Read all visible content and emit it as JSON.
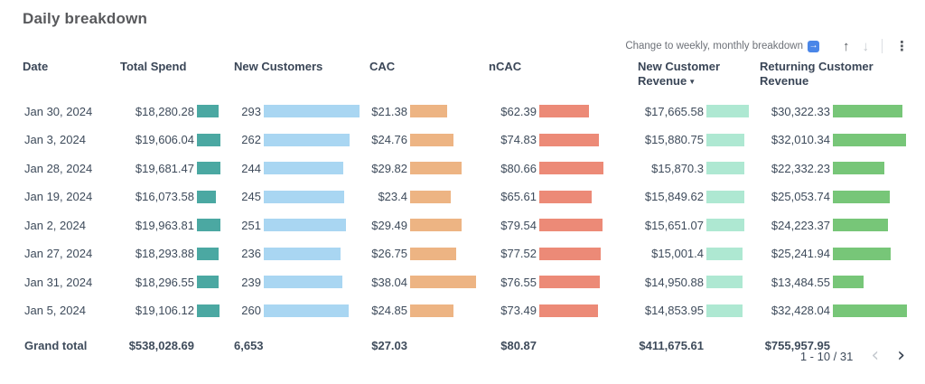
{
  "title": "Daily breakdown",
  "toolbar": {
    "hint": "Change to weekly, monthly breakdown",
    "arrow_icon": "→",
    "sort_up": "↑",
    "sort_down": "↓",
    "menu": "⋮"
  },
  "columns": {
    "date": "Date",
    "spend": "Total Spend",
    "customers": "New Customers",
    "cac": "CAC",
    "ncac": "nCAC",
    "ncr": "New Customer Revenue",
    "rcr": "Returning Customer Revenue",
    "sorted_column": "ncr",
    "sort_caret": "▼"
  },
  "colors": {
    "spend_bar": "#4ba8a2",
    "customers_bar": "#a9d6f2",
    "cac_bar": "#edb483",
    "ncac_bar": "#ec8a77",
    "ncr_bar": "#aee8d2",
    "rcr_bar": "#77c678"
  },
  "chart_data": {
    "type": "table",
    "title": "Daily breakdown",
    "categories": [
      "Jan 30, 2024",
      "Jan 3, 2024",
      "Jan 28, 2024",
      "Jan 19, 2024",
      "Jan 2, 2024",
      "Jan 27, 2024",
      "Jan 31, 2024",
      "Jan 5, 2024"
    ],
    "series": [
      {
        "name": "Total Spend",
        "values": [
          18280.28,
          19606.04,
          19681.47,
          16073.58,
          19963.81,
          18293.88,
          18296.55,
          19106.12
        ]
      },
      {
        "name": "New Customers",
        "values": [
          293,
          262,
          244,
          245,
          251,
          236,
          239,
          260
        ]
      },
      {
        "name": "CAC",
        "values": [
          21.38,
          24.76,
          29.82,
          23.4,
          29.49,
          26.75,
          38.04,
          24.85
        ]
      },
      {
        "name": "nCAC",
        "values": [
          62.39,
          74.83,
          80.66,
          65.61,
          79.54,
          77.52,
          76.55,
          73.49
        ]
      },
      {
        "name": "New Customer Revenue",
        "values": [
          17665.58,
          15880.75,
          15870.3,
          15849.62,
          15651.07,
          15001.4,
          14950.88,
          14853.95
        ]
      },
      {
        "name": "Returning Customer Revenue",
        "values": [
          30322.33,
          32010.34,
          22332.23,
          25053.74,
          24223.37,
          25241.94,
          13484.55,
          32428.04
        ]
      }
    ]
  },
  "rows": [
    {
      "date": "Jan 30, 2024",
      "spend": "$18,280.28",
      "customers": "293",
      "cac": "$21.38",
      "ncac": "$62.39",
      "ncr": "$17,665.58",
      "rcr": "$30,322.33"
    },
    {
      "date": "Jan 3, 2024",
      "spend": "$19,606.04",
      "customers": "262",
      "cac": "$24.76",
      "ncac": "$74.83",
      "ncr": "$15,880.75",
      "rcr": "$32,010.34"
    },
    {
      "date": "Jan 28, 2024",
      "spend": "$19,681.47",
      "customers": "244",
      "cac": "$29.82",
      "ncac": "$80.66",
      "ncr": "$15,870.3",
      "rcr": "$22,332.23"
    },
    {
      "date": "Jan 19, 2024",
      "spend": "$16,073.58",
      "customers": "245",
      "cac": "$23.4",
      "ncac": "$65.61",
      "ncr": "$15,849.62",
      "rcr": "$25,053.74"
    },
    {
      "date": "Jan 2, 2024",
      "spend": "$19,963.81",
      "customers": "251",
      "cac": "$29.49",
      "ncac": "$79.54",
      "ncr": "$15,651.07",
      "rcr": "$24,223.37"
    },
    {
      "date": "Jan 27, 2024",
      "spend": "$18,293.88",
      "customers": "236",
      "cac": "$26.75",
      "ncac": "$77.52",
      "ncr": "$15,001.4",
      "rcr": "$25,241.94"
    },
    {
      "date": "Jan 31, 2024",
      "spend": "$18,296.55",
      "customers": "239",
      "cac": "$38.04",
      "ncac": "$76.55",
      "ncr": "$14,950.88",
      "rcr": "$13,484.55"
    },
    {
      "date": "Jan 5, 2024",
      "spend": "$19,106.12",
      "customers": "260",
      "cac": "$24.85",
      "ncac": "$73.49",
      "ncr": "$14,853.95",
      "rcr": "$32,428.04"
    }
  ],
  "partial_row_bar_estimates": {
    "spend": 18500,
    "customers": 248,
    "cac": 29,
    "ncac": 80,
    "ncr": 15500,
    "rcr": 30500
  },
  "grand_total": {
    "label": "Grand total",
    "spend": "$538,028.69",
    "customers": "6,653",
    "cac": "$27.03",
    "ncac": "$80.87",
    "ncr": "$411,675.61",
    "rcr": "$755,957.95"
  },
  "pagination": {
    "range": "1 - 10 / 31",
    "prev": "‹",
    "next": "›"
  }
}
